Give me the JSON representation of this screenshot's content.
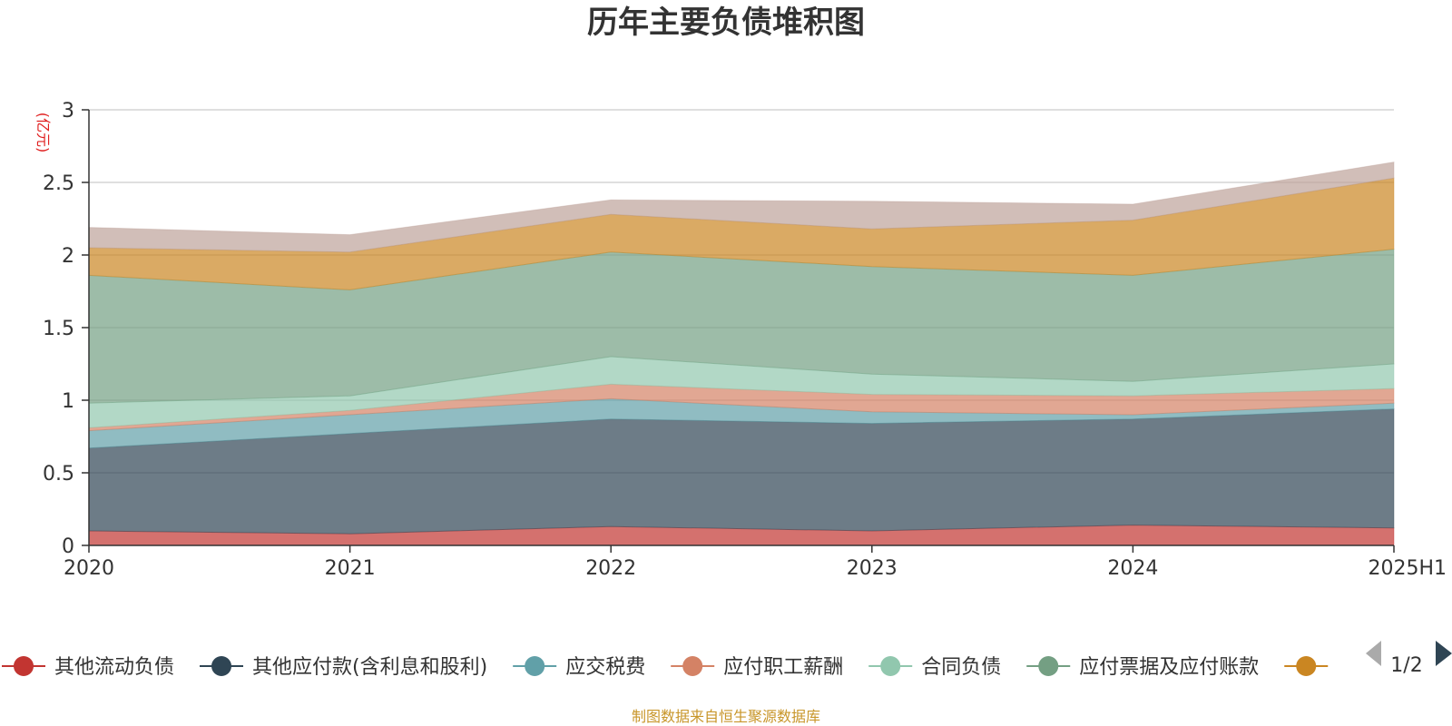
{
  "chart_data": {
    "type": "area",
    "stacked": true,
    "title": "历年主要负债堆积图",
    "unit_label": "(亿元)",
    "x": [
      "2020",
      "2021",
      "2022",
      "2023",
      "2024",
      "2025H1"
    ],
    "y_ticks": [
      "0",
      "0.5",
      "1",
      "1.5",
      "2",
      "2.5",
      "3"
    ],
    "ylim": [
      0,
      3
    ],
    "grid": true,
    "legend_position": "bottom",
    "series": [
      {
        "name": "其他流动负债",
        "color": "#c23531",
        "values": [
          0.1,
          0.08,
          0.13,
          0.1,
          0.14,
          0.12
        ]
      },
      {
        "name": "其他应付款(含利息和股利)",
        "color": "#2f4554",
        "values": [
          0.57,
          0.69,
          0.74,
          0.74,
          0.73,
          0.82
        ]
      },
      {
        "name": "应交税费",
        "color": "#61a0a8",
        "values": [
          0.12,
          0.13,
          0.14,
          0.08,
          0.03,
          0.04
        ]
      },
      {
        "name": "应付职工薪酬",
        "color": "#d48265",
        "values": [
          0.02,
          0.03,
          0.1,
          0.12,
          0.13,
          0.1
        ]
      },
      {
        "name": "合同负债",
        "color": "#91c7ae",
        "values": [
          0.17,
          0.1,
          0.19,
          0.14,
          0.1,
          0.17
        ]
      },
      {
        "name": "应付票据及应付账款",
        "color": "#749f83",
        "values": [
          0.88,
          0.73,
          0.72,
          0.74,
          0.73,
          0.79
        ]
      },
      {
        "name": "",
        "color": "#ca8622",
        "values": [
          0.19,
          0.26,
          0.26,
          0.26,
          0.38,
          0.49
        ]
      },
      {
        "name": "",
        "color": "#bda29a",
        "values": [
          0.14,
          0.12,
          0.1,
          0.19,
          0.11,
          0.11
        ]
      }
    ]
  },
  "legend": {
    "page_indicator": "1/2"
  },
  "footer": {
    "source": "制图数据来自恒生聚源数据库"
  }
}
